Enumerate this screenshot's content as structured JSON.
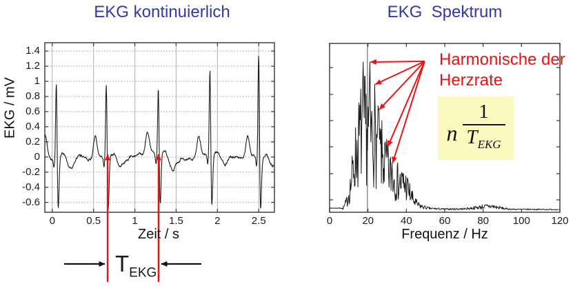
{
  "page": {
    "background": "#ffffff"
  },
  "colors": {
    "title_blue": "#3535ad",
    "annotation_red": "#ee1111",
    "formula_bg": "#fafabe",
    "curve_black": "#1a1a1a",
    "grid_gray": "#b0b0b0",
    "frame_gray": "#404040"
  },
  "chart_data": [
    {
      "type": "line",
      "title": "EKG kontinuierlich",
      "xlabel": "Zeit / s",
      "ylabel": "EKG / mV",
      "xlim": [
        -0.09,
        2.69
      ],
      "ylim": [
        -0.73,
        1.51
      ],
      "xticks": [
        "0",
        "0.5",
        "1",
        "1.5",
        "2",
        "2.5"
      ],
      "yticks": [
        "1.4",
        "1.2",
        "1",
        "0.8",
        "0.6",
        "0.4",
        "0.2",
        "0",
        "-0.2",
        "-0.4",
        "-0.6"
      ],
      "grid": "on",
      "beats": [
        {
          "t": 0.05,
          "r": 1.08
        },
        {
          "t": 0.655,
          "r": 1.07
        },
        {
          "t": 1.285,
          "r": 0.97
        },
        {
          "t": 1.91,
          "r": 1.22
        },
        {
          "t": 2.5,
          "r": 1.47
        }
      ],
      "wave_components": {
        "p_amp": 0.28,
        "p_dt": -0.135,
        "p_w": 0.022,
        "q_amp": -0.12,
        "q_dt": -0.027,
        "q_w": 0.008,
        "r_w": 0.0085,
        "s_amp": -0.7,
        "s_dt": 0.021,
        "s_w": 0.011,
        "u1_amp": 0.06,
        "u1_dt": 0.09,
        "u1_w": 0.03,
        "u2_amp": -0.13,
        "u2_dt": 0.17,
        "u2_w": 0.04
      },
      "interval_markers_t": [
        0.67,
        1.287
      ],
      "interval_label": {
        "base": "T",
        "sub": "EKG"
      },
      "beat_interval_s": 0.63
    },
    {
      "type": "line",
      "title": "EKG  Spektrum",
      "xlabel": "Frequenz / Hz",
      "xlim": [
        0,
        120
      ],
      "xticks": [
        "0",
        "20",
        "40",
        "60",
        "80",
        "100",
        "120"
      ],
      "grid": "off",
      "envelope": [
        [
          0,
          0.012
        ],
        [
          6,
          0.012
        ],
        [
          7,
          0.02
        ],
        [
          9,
          0.1
        ],
        [
          11,
          0.28
        ],
        [
          13,
          0.55
        ],
        [
          15,
          0.75
        ],
        [
          17,
          0.95
        ],
        [
          19,
          0.92
        ],
        [
          21,
          0.88
        ],
        [
          23,
          0.82
        ],
        [
          25,
          0.72
        ],
        [
          27,
          0.62
        ],
        [
          29,
          0.52
        ],
        [
          31,
          0.42
        ],
        [
          33,
          0.38
        ],
        [
          35,
          0.33
        ],
        [
          38,
          0.3
        ],
        [
          40,
          0.28
        ],
        [
          42,
          0.18
        ],
        [
          44,
          0.1
        ],
        [
          46,
          0.06
        ],
        [
          48,
          0.04
        ],
        [
          52,
          0.02
        ],
        [
          60,
          0.012
        ],
        [
          70,
          0.015
        ],
        [
          75,
          0.025
        ],
        [
          80,
          0.04
        ],
        [
          84,
          0.045
        ],
        [
          88,
          0.03
        ],
        [
          92,
          0.015
        ],
        [
          96,
          0.01
        ],
        [
          120,
          0.008
        ]
      ],
      "main_peak": {
        "hz": 17.5,
        "level": 1.0
      },
      "fundamental_marker_hz": 19.7,
      "harmonic_arrows": [
        {
          "hz": 21.0,
          "level": 1.0
        },
        {
          "hz": 23.5,
          "level": 0.85
        },
        {
          "hz": 25.6,
          "level": 0.68
        },
        {
          "hz": 30.0,
          "level": 0.43
        },
        {
          "hz": 32.5,
          "level": 0.32
        }
      ],
      "arrow_origin": {
        "hz": 49.5,
        "level": 1.0
      },
      "annotation": {
        "line1": "Harmonische der",
        "line2": "Herzrate"
      },
      "formula": {
        "prefix": "n",
        "numerator": "1",
        "denominator_base": "T",
        "denominator_sub": "EKG"
      }
    }
  ]
}
